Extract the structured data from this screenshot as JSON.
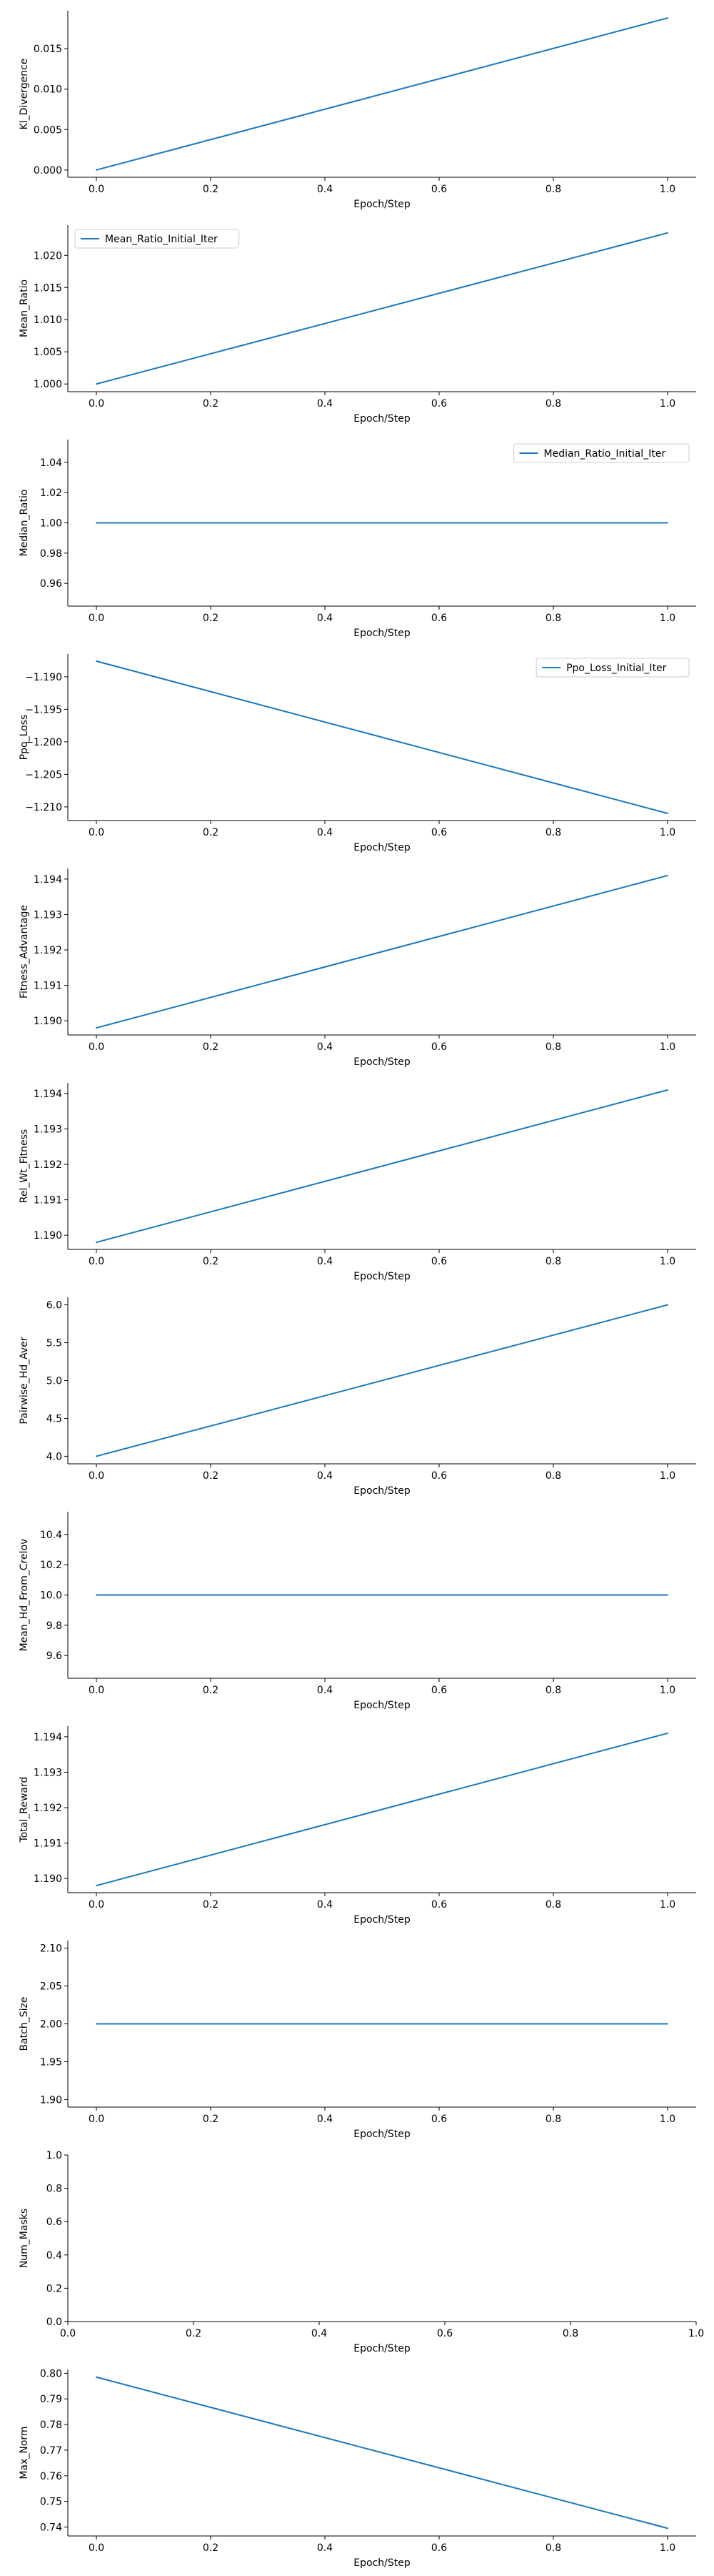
{
  "style": {
    "line_color": "#1f77b4",
    "axis_color": "#000000",
    "legend_border": "#cccccc",
    "background": "#ffffff"
  },
  "chart_data": [
    {
      "type": "line",
      "xlabel": "Epoch/Step",
      "ylabel": "Kl_Divergence",
      "x": [
        0.0,
        1.0
      ],
      "series": [
        {
          "values": [
            0.0,
            0.0188
          ]
        }
      ],
      "xlim": [
        -0.05,
        1.05
      ],
      "ylim": [
        -0.0009,
        0.0197
      ],
      "xticks": [
        0.0,
        0.2,
        0.4,
        0.6,
        0.8,
        1.0
      ],
      "xtick_labels": [
        "0.0",
        "0.2",
        "0.4",
        "0.6",
        "0.8",
        "1.0"
      ],
      "yticks": [
        0.0,
        0.005,
        0.01,
        0.015
      ],
      "ytick_labels": [
        "0.000",
        "0.005",
        "0.010",
        "0.015"
      ],
      "legend": null
    },
    {
      "type": "line",
      "xlabel": "Epoch/Step",
      "ylabel": "Mean_Ratio",
      "x": [
        0.0,
        1.0
      ],
      "series": [
        {
          "name": "Mean_Ratio_Initial_Iter",
          "values": [
            1.0,
            1.0235
          ]
        }
      ],
      "xlim": [
        -0.05,
        1.05
      ],
      "ylim": [
        0.9988,
        1.0247
      ],
      "xticks": [
        0.0,
        0.2,
        0.4,
        0.6,
        0.8,
        1.0
      ],
      "xtick_labels": [
        "0.0",
        "0.2",
        "0.4",
        "0.6",
        "0.8",
        "1.0"
      ],
      "yticks": [
        1.0,
        1.005,
        1.01,
        1.015,
        1.02
      ],
      "ytick_labels": [
        "1.000",
        "1.005",
        "1.010",
        "1.015",
        "1.020"
      ],
      "legend": "top-left"
    },
    {
      "type": "line",
      "xlabel": "Epoch/Step",
      "ylabel": "Median_Ratio",
      "x": [
        0.0,
        1.0
      ],
      "series": [
        {
          "name": "Median_Ratio_Initial_Iter",
          "values": [
            1.0,
            1.0
          ]
        }
      ],
      "xlim": [
        -0.05,
        1.05
      ],
      "ylim": [
        0.945,
        1.055
      ],
      "xticks": [
        0.0,
        0.2,
        0.4,
        0.6,
        0.8,
        1.0
      ],
      "xtick_labels": [
        "0.0",
        "0.2",
        "0.4",
        "0.6",
        "0.8",
        "1.0"
      ],
      "yticks": [
        0.96,
        0.98,
        1.0,
        1.02,
        1.04
      ],
      "ytick_labels": [
        "0.96",
        "0.98",
        "1.00",
        "1.02",
        "1.04"
      ],
      "legend": "top-right"
    },
    {
      "type": "line",
      "xlabel": "Epoch/Step",
      "ylabel": "Ppo_Loss",
      "x": [
        0.0,
        1.0
      ],
      "series": [
        {
          "name": "Ppo_Loss_Initial_Iter",
          "values": [
            -1.1876,
            -1.211
          ]
        }
      ],
      "xlim": [
        -0.05,
        1.05
      ],
      "ylim": [
        -1.2121,
        -1.1865
      ],
      "xticks": [
        0.0,
        0.2,
        0.4,
        0.6,
        0.8,
        1.0
      ],
      "xtick_labels": [
        "0.0",
        "0.2",
        "0.4",
        "0.6",
        "0.8",
        "1.0"
      ],
      "yticks": [
        -1.19,
        -1.195,
        -1.2,
        -1.205,
        -1.21
      ],
      "ytick_labels": [
        "−1.190",
        "−1.195",
        "−1.200",
        "−1.205",
        "−1.210"
      ],
      "legend": "top-right"
    },
    {
      "type": "line",
      "xlabel": "Epoch/Step",
      "ylabel": "Fitness_Advantage",
      "x": [
        0.0,
        1.0
      ],
      "series": [
        {
          "values": [
            1.1898,
            1.1941
          ]
        }
      ],
      "xlim": [
        -0.05,
        1.05
      ],
      "ylim": [
        1.1896,
        1.1943
      ],
      "xticks": [
        0.0,
        0.2,
        0.4,
        0.6,
        0.8,
        1.0
      ],
      "xtick_labels": [
        "0.0",
        "0.2",
        "0.4",
        "0.6",
        "0.8",
        "1.0"
      ],
      "yticks": [
        1.19,
        1.191,
        1.192,
        1.193,
        1.194
      ],
      "ytick_labels": [
        "1.190",
        "1.191",
        "1.192",
        "1.193",
        "1.194"
      ],
      "legend": null
    },
    {
      "type": "line",
      "xlabel": "Epoch/Step",
      "ylabel": "Rel_Wt_Fitness",
      "x": [
        0.0,
        1.0
      ],
      "series": [
        {
          "values": [
            1.1898,
            1.1941
          ]
        }
      ],
      "xlim": [
        -0.05,
        1.05
      ],
      "ylim": [
        1.1896,
        1.1943
      ],
      "xticks": [
        0.0,
        0.2,
        0.4,
        0.6,
        0.8,
        1.0
      ],
      "xtick_labels": [
        "0.0",
        "0.2",
        "0.4",
        "0.6",
        "0.8",
        "1.0"
      ],
      "yticks": [
        1.19,
        1.191,
        1.192,
        1.193,
        1.194
      ],
      "ytick_labels": [
        "1.190",
        "1.191",
        "1.192",
        "1.193",
        "1.194"
      ],
      "legend": null
    },
    {
      "type": "line",
      "xlabel": "Epoch/Step",
      "ylabel": "Pairwise_Hd_Aver",
      "x": [
        0.0,
        1.0
      ],
      "series": [
        {
          "values": [
            4.0,
            6.0
          ]
        }
      ],
      "xlim": [
        -0.05,
        1.05
      ],
      "ylim": [
        3.9,
        6.1
      ],
      "xticks": [
        0.0,
        0.2,
        0.4,
        0.6,
        0.8,
        1.0
      ],
      "xtick_labels": [
        "0.0",
        "0.2",
        "0.4",
        "0.6",
        "0.8",
        "1.0"
      ],
      "yticks": [
        4.0,
        4.5,
        5.0,
        5.5,
        6.0
      ],
      "ytick_labels": [
        "4.0",
        "4.5",
        "5.0",
        "5.5",
        "6.0"
      ],
      "legend": null
    },
    {
      "type": "line",
      "xlabel": "Epoch/Step",
      "ylabel": "Mean_Hd_From_Crelov",
      "x": [
        0.0,
        1.0
      ],
      "series": [
        {
          "values": [
            10.0,
            10.0
          ]
        }
      ],
      "xlim": [
        -0.05,
        1.05
      ],
      "ylim": [
        9.45,
        10.55
      ],
      "xticks": [
        0.0,
        0.2,
        0.4,
        0.6,
        0.8,
        1.0
      ],
      "xtick_labels": [
        "0.0",
        "0.2",
        "0.4",
        "0.6",
        "0.8",
        "1.0"
      ],
      "yticks": [
        9.6,
        9.8,
        10.0,
        10.2,
        10.4
      ],
      "ytick_labels": [
        "9.6",
        "9.8",
        "10.0",
        "10.2",
        "10.4"
      ],
      "legend": null
    },
    {
      "type": "line",
      "xlabel": "Epoch/Step",
      "ylabel": "Total_Reward",
      "x": [
        0.0,
        1.0
      ],
      "series": [
        {
          "values": [
            1.1898,
            1.1941
          ]
        }
      ],
      "xlim": [
        -0.05,
        1.05
      ],
      "ylim": [
        1.1896,
        1.1943
      ],
      "xticks": [
        0.0,
        0.2,
        0.4,
        0.6,
        0.8,
        1.0
      ],
      "xtick_labels": [
        "0.0",
        "0.2",
        "0.4",
        "0.6",
        "0.8",
        "1.0"
      ],
      "yticks": [
        1.19,
        1.191,
        1.192,
        1.193,
        1.194
      ],
      "ytick_labels": [
        "1.190",
        "1.191",
        "1.192",
        "1.193",
        "1.194"
      ],
      "legend": null
    },
    {
      "type": "line",
      "xlabel": "Epoch/Step",
      "ylabel": "Batch_Size",
      "x": [
        0.0,
        1.0
      ],
      "series": [
        {
          "values": [
            2.0,
            2.0
          ]
        }
      ],
      "xlim": [
        -0.05,
        1.05
      ],
      "ylim": [
        1.89,
        2.11
      ],
      "xticks": [
        0.0,
        0.2,
        0.4,
        0.6,
        0.8,
        1.0
      ],
      "xtick_labels": [
        "0.0",
        "0.2",
        "0.4",
        "0.6",
        "0.8",
        "1.0"
      ],
      "yticks": [
        1.9,
        1.95,
        2.0,
        2.05,
        2.1
      ],
      "ytick_labels": [
        "1.90",
        "1.95",
        "2.00",
        "2.05",
        "2.10"
      ],
      "legend": null
    },
    {
      "type": "line",
      "xlabel": "Epoch/Step",
      "ylabel": "Num_Masks",
      "x": [],
      "series": [],
      "xlim": [
        0.0,
        1.0
      ],
      "ylim": [
        0.0,
        1.0
      ],
      "xticks": [
        0.0,
        0.2,
        0.4,
        0.6,
        0.8,
        1.0
      ],
      "xtick_labels": [
        "0.0",
        "0.2",
        "0.4",
        "0.6",
        "0.8",
        "1.0"
      ],
      "yticks": [
        0.0,
        0.2,
        0.4,
        0.6,
        0.8,
        1.0
      ],
      "ytick_labels": [
        "0.0",
        "0.2",
        "0.4",
        "0.6",
        "0.8",
        "1.0"
      ],
      "legend": null
    },
    {
      "type": "line",
      "xlabel": "Epoch/Step",
      "ylabel": "Max_Norm",
      "x": [
        0.0,
        1.0
      ],
      "series": [
        {
          "values": [
            0.7985,
            0.7395
          ]
        }
      ],
      "xlim": [
        -0.05,
        1.05
      ],
      "ylim": [
        0.7365,
        0.8015
      ],
      "xticks": [
        0.0,
        0.2,
        0.4,
        0.6,
        0.8,
        1.0
      ],
      "xtick_labels": [
        "0.0",
        "0.2",
        "0.4",
        "0.6",
        "0.8",
        "1.0"
      ],
      "yticks": [
        0.74,
        0.75,
        0.76,
        0.77,
        0.78,
        0.79,
        0.8
      ],
      "ytick_labels": [
        "0.74",
        "0.75",
        "0.76",
        "0.77",
        "0.78",
        "0.79",
        "0.80"
      ],
      "legend": null
    }
  ]
}
